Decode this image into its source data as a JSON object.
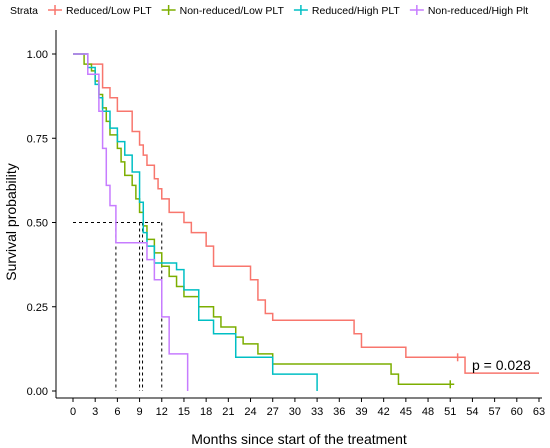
{
  "chart_data": {
    "type": "line",
    "step": true,
    "xlabel": "Months since start of the treatment",
    "ylabel": "Survival probability",
    "xlim": [
      0,
      63
    ],
    "ylim": [
      0,
      1
    ],
    "xticks": [
      0,
      3,
      6,
      9,
      12,
      15,
      18,
      21,
      24,
      27,
      30,
      33,
      36,
      39,
      42,
      45,
      48,
      51,
      54,
      57,
      60,
      63
    ],
    "yticks": [
      0.0,
      0.25,
      0.5,
      0.75,
      1.0
    ],
    "ytick_labels": [
      "0.00",
      "0.25",
      "0.50",
      "0.75",
      "1.00"
    ],
    "grid": false,
    "legend": {
      "title": "Strata",
      "placement": "top"
    },
    "annotation": "p = 0.028",
    "median_line": {
      "y": 0.5,
      "x_values": [
        5.8,
        9,
        9.4,
        12
      ]
    },
    "series": [
      {
        "name": "Reduced/Low PLT",
        "color": "#F8766D",
        "points": [
          [
            0,
            1.0
          ],
          [
            2,
            0.97
          ],
          [
            4,
            0.9
          ],
          [
            5,
            0.87
          ],
          [
            6,
            0.83
          ],
          [
            8,
            0.77
          ],
          [
            9,
            0.73
          ],
          [
            9.5,
            0.7
          ],
          [
            10,
            0.67
          ],
          [
            11,
            0.63
          ],
          [
            11.5,
            0.6
          ],
          [
            12,
            0.57
          ],
          [
            13,
            0.53
          ],
          [
            15,
            0.5
          ],
          [
            16,
            0.47
          ],
          [
            18,
            0.43
          ],
          [
            19,
            0.37
          ],
          [
            24,
            0.33
          ],
          [
            25,
            0.27
          ],
          [
            26,
            0.23
          ],
          [
            27,
            0.21
          ],
          [
            38,
            0.17
          ],
          [
            39,
            0.13
          ],
          [
            45,
            0.1
          ],
          [
            52,
            0.1
          ],
          [
            53,
            0.053
          ],
          [
            63,
            0.053
          ]
        ],
        "censor": [
          [
            52,
            0.1
          ]
        ]
      },
      {
        "name": "Non-reduced/Low PLT",
        "color": "#7CAE00",
        "points": [
          [
            0,
            1.0
          ],
          [
            1.5,
            0.97
          ],
          [
            2.5,
            0.95
          ],
          [
            3,
            0.92
          ],
          [
            3.5,
            0.88
          ],
          [
            4,
            0.84
          ],
          [
            4.5,
            0.8
          ],
          [
            5,
            0.76
          ],
          [
            6,
            0.72
          ],
          [
            6.5,
            0.68
          ],
          [
            7,
            0.64
          ],
          [
            8,
            0.61
          ],
          [
            8.5,
            0.57
          ],
          [
            9,
            0.53
          ],
          [
            9.5,
            0.49
          ],
          [
            10,
            0.45
          ],
          [
            11,
            0.41
          ],
          [
            12,
            0.37
          ],
          [
            13,
            0.34
          ],
          [
            14,
            0.31
          ],
          [
            15,
            0.28
          ],
          [
            17,
            0.25
          ],
          [
            19,
            0.22
          ],
          [
            20,
            0.19
          ],
          [
            22,
            0.16
          ],
          [
            23,
            0.14
          ],
          [
            25,
            0.11
          ],
          [
            27,
            0.08
          ],
          [
            43,
            0.05
          ],
          [
            44,
            0.02
          ],
          [
            51,
            0.02
          ]
        ],
        "censor": [
          [
            51,
            0.02
          ]
        ]
      },
      {
        "name": "Reduced/High PLT",
        "color": "#00BFC4",
        "points": [
          [
            0,
            1.0
          ],
          [
            2,
            0.96
          ],
          [
            3,
            0.91
          ],
          [
            3.5,
            0.87
          ],
          [
            4,
            0.83
          ],
          [
            5,
            0.78
          ],
          [
            6,
            0.74
          ],
          [
            7,
            0.7
          ],
          [
            8,
            0.65
          ],
          [
            9,
            0.56
          ],
          [
            9.5,
            0.47
          ],
          [
            10,
            0.43
          ],
          [
            11,
            0.38
          ],
          [
            14,
            0.36
          ],
          [
            15,
            0.3
          ],
          [
            17,
            0.21
          ],
          [
            19,
            0.17
          ],
          [
            22,
            0.1
          ],
          [
            27,
            0.05
          ],
          [
            33,
            0.0
          ]
        ],
        "censor": []
      },
      {
        "name": "Non-reduced/High Plt",
        "color": "#C77CFF",
        "points": [
          [
            0,
            1.0
          ],
          [
            1,
            1.0
          ],
          [
            2,
            0.94
          ],
          [
            3.5,
            0.83
          ],
          [
            4,
            0.72
          ],
          [
            4.5,
            0.61
          ],
          [
            5,
            0.55
          ],
          [
            5.8,
            0.44
          ],
          [
            10,
            0.39
          ],
          [
            11,
            0.33
          ],
          [
            12,
            0.22
          ],
          [
            13,
            0.11
          ],
          [
            15.5,
            0.0
          ]
        ],
        "censor": []
      }
    ]
  }
}
